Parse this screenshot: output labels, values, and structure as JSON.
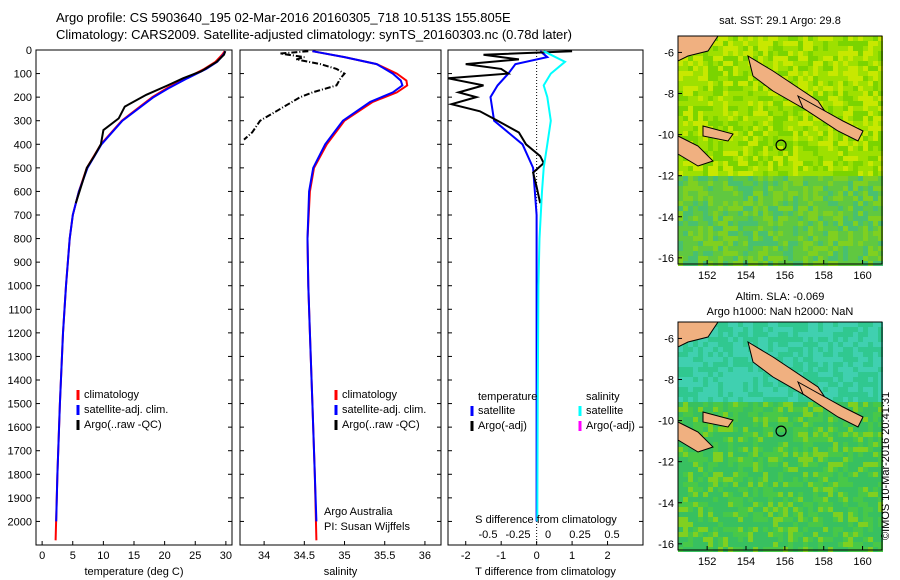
{
  "header": {
    "line1": "Argo profile: CS 5903640_195 02-Mar-2016 20160305_718 10.513S 155.805E",
    "line2": "Climatology: CARS2009. Satellite-adjusted climatology: synTS_20160303.nc (0.78d later)"
  },
  "colors": {
    "climatology": "#ff0000",
    "satellite": "#0000ff",
    "argo": "#000000",
    "sat_salinity": "#00ffff",
    "argo_adj_salinity": "#ff00ff",
    "land": "#f0b080"
  },
  "chart_data": [
    {
      "type": "line",
      "xlabel": "temperature (deg C)",
      "ylabel": "",
      "xlim": [
        -1,
        31
      ],
      "ylim": [
        2100,
        0
      ],
      "xticks": [
        0,
        5,
        10,
        15,
        20,
        25,
        30
      ],
      "yticks": [
        0,
        100,
        200,
        300,
        400,
        500,
        600,
        700,
        800,
        900,
        1000,
        1100,
        1200,
        1300,
        1400,
        1500,
        1600,
        1700,
        1800,
        1900,
        2000
      ],
      "series": [
        {
          "name": "climatology",
          "color": "#ff0000",
          "depth": [
            5,
            20,
            50,
            80,
            120,
            160,
            200,
            300,
            400,
            500,
            600,
            700,
            800,
            1000,
            1200,
            1500,
            1800,
            2080
          ],
          "values": [
            29.8,
            29.4,
            28.3,
            26.5,
            23.5,
            20.5,
            18,
            13,
            9.6,
            7.3,
            6,
            5,
            4.5,
            3.9,
            3.4,
            2.9,
            2.5,
            2.2
          ]
        },
        {
          "name": "satellite-adj. clim.",
          "color": "#0000ff",
          "depth": [
            5,
            20,
            50,
            80,
            120,
            160,
            200,
            300,
            400,
            500,
            600,
            700,
            800,
            1000,
            1200,
            1500,
            1800,
            2000
          ],
          "values": [
            29.9,
            29.6,
            28.6,
            26.8,
            23.7,
            20.8,
            18.2,
            13.1,
            9.7,
            7.4,
            6,
            5,
            4.5,
            3.9,
            3.4,
            2.9,
            2.5,
            2.3
          ]
        },
        {
          "name": "Argo(..raw -QC)",
          "color": "#000000",
          "depth": [
            5,
            20,
            50,
            90,
            120,
            150,
            190,
            240,
            290,
            340,
            400,
            450,
            500,
            560,
            650
          ],
          "values": [
            29.9,
            29.7,
            28.5,
            26,
            23,
            20.5,
            17,
            13.5,
            12.5,
            10,
            9.6,
            8.5,
            7.3,
            6.6,
            5.5
          ]
        }
      ],
      "legend": {
        "position": "lower-right",
        "entries": [
          "climatology",
          "satellite-adj. clim.",
          "Argo(..raw -QC)"
        ]
      }
    },
    {
      "type": "line",
      "xlabel": "salinity",
      "xlim": [
        33.7,
        36.2
      ],
      "ylim": [
        2100,
        0
      ],
      "xticks": [
        34,
        34.5,
        35,
        35.5,
        36
      ],
      "series": [
        {
          "name": "climatology",
          "color": "#ff0000",
          "depth": [
            5,
            30,
            60,
            100,
            130,
            150,
            180,
            220,
            300,
            400,
            500,
            600,
            800,
            1000,
            1200,
            1500,
            1800,
            2080
          ],
          "values": [
            34.6,
            35,
            35.4,
            35.65,
            35.77,
            35.78,
            35.65,
            35.35,
            35,
            34.78,
            34.62,
            34.57,
            34.54,
            34.55,
            34.57,
            34.6,
            34.63,
            34.65
          ]
        },
        {
          "name": "satellite-adj. clim.",
          "color": "#0000ff",
          "depth": [
            5,
            30,
            60,
            100,
            130,
            150,
            180,
            220,
            300,
            400,
            500,
            600,
            800,
            1000,
            1200,
            1500,
            1800,
            2000
          ],
          "values": [
            34.6,
            35,
            35.4,
            35.6,
            35.7,
            35.72,
            35.6,
            35.32,
            34.98,
            34.76,
            34.61,
            34.56,
            34.54,
            34.55,
            34.57,
            34.6,
            34.63,
            34.65
          ]
        },
        {
          "name": "Argo(..raw -QC)",
          "color": "#000000",
          "depth": [
            5,
            15,
            20,
            30,
            40,
            60,
            80,
            100,
            120,
            150,
            180,
            200,
            230,
            260,
            300,
            350,
            380
          ],
          "values": [
            34.55,
            34.2,
            34.3,
            34.5,
            34.4,
            34.7,
            34.9,
            35,
            34.95,
            34.9,
            34.6,
            34.45,
            34.3,
            34.15,
            33.95,
            33.85,
            33.75
          ]
        }
      ],
      "legend": {
        "position": "lower-right",
        "entries": [
          "climatology",
          "satellite-adj. clim.",
          "Argo(..raw -QC)"
        ]
      },
      "annotation": [
        "Argo Australia",
        "PI: Susan Wijffels"
      ]
    },
    {
      "type": "line",
      "xlabel": "T difference from climatology",
      "top_axis_label": "S difference from climatology",
      "xlim": [
        -2.5,
        3
      ],
      "ylim": [
        2100,
        0
      ],
      "xticks": [
        -2,
        -1,
        0,
        1,
        2
      ],
      "top_ticks": [
        "-0.5",
        "-0.25",
        "0",
        "0.25",
        "0.5"
      ],
      "series": [
        {
          "name": "satellite (temperature)",
          "color": "#0000ff",
          "depth": [
            5,
            30,
            60,
            100,
            150,
            200,
            300,
            400,
            500,
            700,
            1000,
            1500,
            2000
          ],
          "values": [
            0.1,
            0.3,
            -0.6,
            -0.8,
            -1.1,
            -1.3,
            -1.2,
            -0.4,
            -0.1,
            0,
            0,
            0,
            0
          ]
        },
        {
          "name": "Argo(-adj) (temperature)",
          "color": "#000000",
          "depth": [
            5,
            20,
            40,
            60,
            80,
            100,
            120,
            150,
            180,
            200,
            230,
            260,
            300,
            350,
            400,
            450,
            480,
            520,
            580,
            650
          ],
          "values": [
            1,
            -1.5,
            -0.5,
            -2,
            -1,
            -0.8,
            -2.5,
            -1.5,
            -2.2,
            -1.7,
            -2.4,
            -1.6,
            -1.1,
            -0.5,
            -0.3,
            0.1,
            0.2,
            -0.1,
            0,
            0.1
          ]
        },
        {
          "name": "satellite (salinity)",
          "color": "#00ffff",
          "depth": [
            5,
            50,
            100,
            150,
            200,
            300,
            400,
            500,
            600,
            800,
            1000,
            1500,
            2000
          ],
          "values": [
            0.2,
            0.8,
            0.4,
            0.2,
            0.3,
            0.4,
            0.3,
            0.2,
            0.15,
            0.08,
            0.05,
            0.03,
            0.02
          ]
        }
      ],
      "legend": {
        "position": "lower-right",
        "groups": [
          {
            "title": "temperature",
            "entries": [
              "satellite",
              "Argo(-adj)"
            ]
          },
          {
            "title": "salinity",
            "entries": [
              "satellite",
              "Argo(-adj)"
            ]
          }
        ]
      }
    },
    {
      "type": "heatmap",
      "title": "sat. SST: 29.1  Argo: 29.8",
      "xticks": [
        152,
        154,
        156,
        158,
        160
      ],
      "yticks": [
        -6,
        -8,
        -10,
        -12,
        -14,
        -16
      ],
      "marker": {
        "lon": 155.805,
        "lat": -10.513
      }
    },
    {
      "type": "heatmap",
      "title": "Altim. SLA: -0.069",
      "subtitle": "Argo h1000: NaN h2000: NaN",
      "xticks": [
        152,
        154,
        156,
        158,
        160
      ],
      "yticks": [
        -6,
        -8,
        -10,
        -12,
        -14,
        -16
      ],
      "marker": {
        "lon": 155.805,
        "lat": -10.513
      }
    }
  ],
  "footer": {
    "timestamp": "©IMOS 10-Mar-2016 20:41:31"
  }
}
